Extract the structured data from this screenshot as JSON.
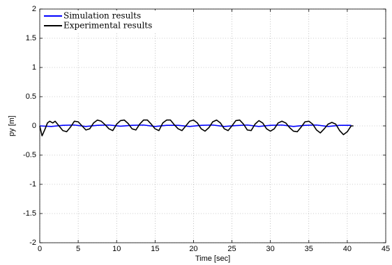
{
  "chart_data": {
    "type": "line",
    "xlabel": "Time [sec]",
    "ylabel": "py [m]",
    "xlim": [
      0,
      45
    ],
    "xticks": [
      0,
      5,
      10,
      15,
      20,
      25,
      30,
      35,
      40,
      45
    ],
    "ylim": [
      -2,
      2
    ],
    "yticks": [
      -2,
      -1.5,
      -1,
      -0.5,
      0,
      0.5,
      1,
      1.5,
      2
    ],
    "grid": true,
    "legend": "upper left",
    "series": [
      {
        "name": "Simulation results",
        "color": "#0000ff",
        "x": [
          0,
          1.5,
          3,
          4.5,
          6,
          7.5,
          9,
          10.5,
          12,
          13.5,
          15,
          16.5,
          18,
          19.5,
          21,
          22.5,
          24,
          25.5,
          27,
          28.5,
          30,
          31.5,
          33,
          34.5,
          36,
          37.5,
          39,
          40.5
        ],
        "values": [
          0,
          -0.01,
          0.01,
          0.015,
          -0.01,
          0.01,
          0.015,
          -0.005,
          0.01,
          0.015,
          -0.01,
          0.01,
          0.01,
          -0.01,
          0.01,
          0.015,
          -0.01,
          0.005,
          0.015,
          -0.01,
          0.01,
          0.015,
          -0.01,
          0.01,
          0.015,
          -0.01,
          0.01,
          0.01
        ]
      },
      {
        "name": "Experimental results",
        "color": "#000000",
        "x": [
          0,
          0.3,
          0.7,
          1,
          1.3,
          1.7,
          2,
          2.5,
          3,
          3.5,
          4,
          4.5,
          5,
          5.5,
          6,
          6.5,
          7,
          7.5,
          8,
          8.5,
          9,
          9.5,
          10,
          10.5,
          11,
          11.5,
          12,
          12.5,
          13,
          13.5,
          14,
          14.5,
          15,
          15.5,
          16,
          16.5,
          17,
          17.5,
          18,
          18.5,
          19,
          19.5,
          20,
          20.5,
          21,
          21.5,
          22,
          22.5,
          23,
          23.5,
          24,
          24.5,
          25,
          25.5,
          26,
          26.5,
          27,
          27.5,
          28,
          28.5,
          29,
          29.5,
          30,
          30.5,
          31,
          31.5,
          32,
          32.5,
          33,
          33.5,
          34,
          34.5,
          35,
          35.5,
          36,
          36.5,
          37,
          37.5,
          38,
          38.5,
          39,
          39.5,
          40,
          40.5,
          40.8
        ],
        "values": [
          0,
          -0.17,
          -0.05,
          0.05,
          0.08,
          0.05,
          0.08,
          0,
          -0.08,
          -0.1,
          -0.02,
          0.08,
          0.07,
          0,
          -0.07,
          -0.05,
          0.05,
          0.1,
          0.08,
          0.02,
          -0.05,
          -0.08,
          0.03,
          0.09,
          0.1,
          0.04,
          -0.05,
          -0.07,
          0.03,
          0.1,
          0.1,
          0.03,
          -0.05,
          -0.08,
          0.05,
          0.1,
          0.1,
          0.02,
          -0.05,
          -0.08,
          0,
          0.08,
          0.1,
          0.05,
          -0.05,
          -0.09,
          -0.03,
          0.07,
          0.1,
          0.05,
          -0.05,
          -0.08,
          0,
          0.09,
          0.1,
          0.03,
          -0.07,
          -0.08,
          0.03,
          0.09,
          0.05,
          -0.05,
          -0.09,
          -0.05,
          0.05,
          0.08,
          0.05,
          -0.03,
          -0.09,
          -0.1,
          -0.02,
          0.07,
          0.08,
          0.03,
          -0.07,
          -0.12,
          -0.05,
          0.03,
          0.06,
          0.03,
          -0.08,
          -0.15,
          -0.1,
          0,
          0
        ]
      }
    ]
  }
}
